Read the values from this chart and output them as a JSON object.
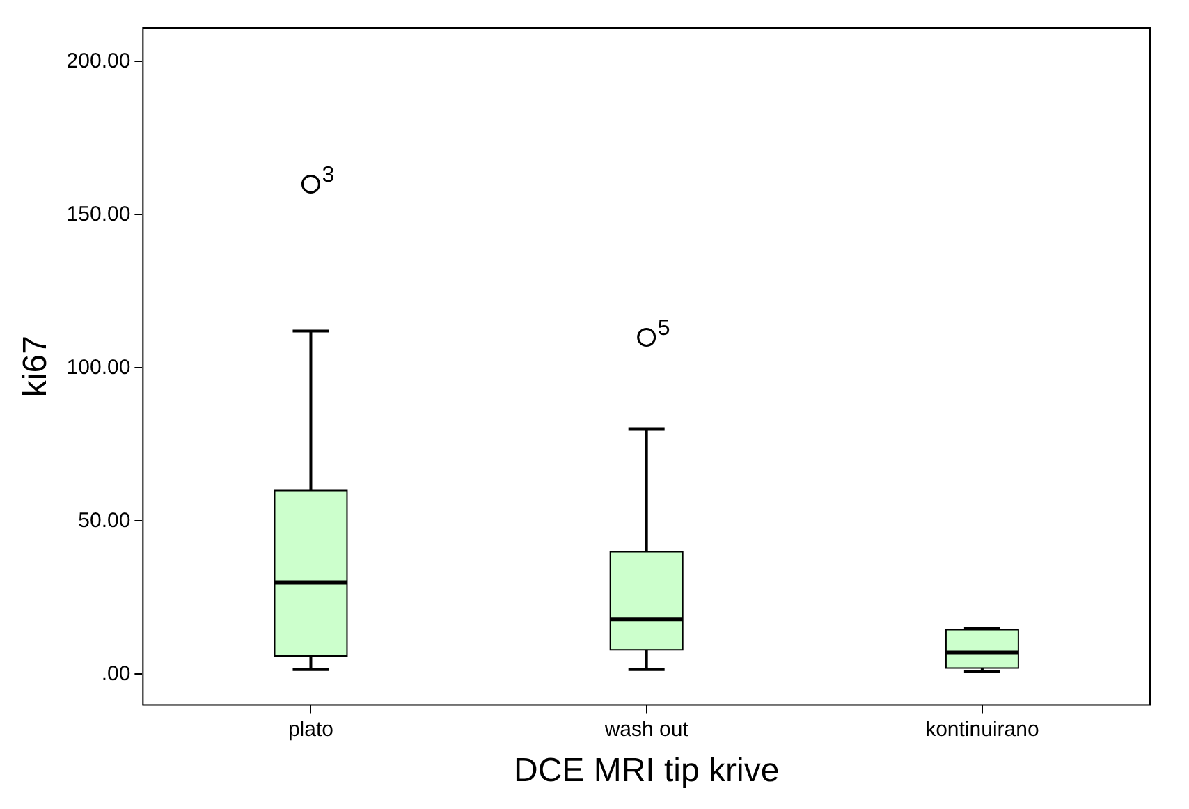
{
  "chart_data": {
    "type": "box",
    "xlabel": "DCE MRI tip krive",
    "ylabel": "ki67",
    "categories": [
      "plato",
      "wash out",
      "kontinuirano"
    ],
    "color": "#ccffcc",
    "boxes": [
      {
        "low": 1.5,
        "q1": 6,
        "median": 30,
        "q3": 60,
        "high": 112,
        "outliers": [
          160
        ]
      },
      {
        "low": 1.5,
        "q1": 8,
        "median": 18,
        "q3": 40,
        "high": 80,
        "outliers": [
          110
        ]
      },
      {
        "low": 1,
        "q1": 2,
        "median": 7,
        "q3": 14.5,
        "high": 15
      }
    ],
    "annotations": [
      "3",
      "5"
    ],
    "ylim": [
      -10,
      211
    ],
    "yticks": [
      {
        "value": 0,
        "label": ".00"
      },
      {
        "value": 50,
        "label": "50.00"
      },
      {
        "value": 100,
        "label": "100.00"
      },
      {
        "value": 150,
        "label": "150.00"
      },
      {
        "value": 200,
        "label": "200.00"
      }
    ]
  }
}
